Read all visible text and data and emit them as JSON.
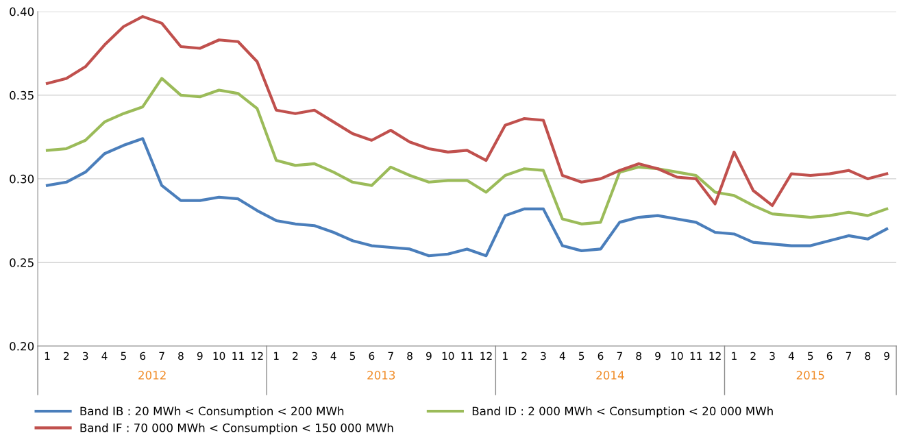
{
  "chart_data": {
    "type": "line",
    "categories": [
      "1",
      "2",
      "3",
      "4",
      "5",
      "6",
      "7",
      "8",
      "9",
      "10",
      "11",
      "12",
      "1",
      "2",
      "3",
      "4",
      "5",
      "6",
      "7",
      "8",
      "9",
      "10",
      "11",
      "12",
      "1",
      "2",
      "3",
      "4",
      "5",
      "6",
      "7",
      "8",
      "9",
      "10",
      "11",
      "12",
      "1",
      "2",
      "3",
      "4",
      "5",
      "6",
      "7",
      "8",
      "9"
    ],
    "annotations": [
      "2012",
      "2013",
      "2014",
      "2015"
    ],
    "series": [
      {
        "name": "Band IB : 20 MWh < Consumption < 200 MWh",
        "color": "#4a7ebb",
        "values": [
          0.296,
          0.298,
          0.304,
          0.315,
          0.32,
          0.324,
          0.296,
          0.287,
          0.287,
          0.289,
          0.288,
          0.281,
          0.275,
          0.273,
          0.272,
          0.268,
          0.263,
          0.26,
          0.259,
          0.258,
          0.254,
          0.255,
          0.258,
          0.254,
          0.278,
          0.282,
          0.282,
          0.26,
          0.257,
          0.258,
          0.274,
          0.277,
          0.278,
          0.276,
          0.274,
          0.268,
          0.267,
          0.262,
          0.261,
          0.26,
          0.26,
          0.263,
          0.266,
          0.264,
          0.27
        ]
      },
      {
        "name": "Band ID : 2 000 MWh < Consumption < 20 000 MWh",
        "color": "#9bbb59",
        "values": [
          0.317,
          0.318,
          0.323,
          0.334,
          0.339,
          0.343,
          0.36,
          0.35,
          0.349,
          0.353,
          0.351,
          0.342,
          0.311,
          0.308,
          0.309,
          0.304,
          0.298,
          0.296,
          0.307,
          0.302,
          0.298,
          0.299,
          0.299,
          0.292,
          0.302,
          0.306,
          0.305,
          0.276,
          0.273,
          0.274,
          0.304,
          0.307,
          0.306,
          0.304,
          0.302,
          0.292,
          0.29,
          0.284,
          0.279,
          0.278,
          0.277,
          0.278,
          0.28,
          0.278,
          0.282
        ]
      },
      {
        "name": "Band IF : 70 000 MWh < Consumption < 150 000 MWh",
        "color": "#c0504d",
        "values": [
          0.357,
          0.36,
          0.367,
          0.38,
          0.391,
          0.397,
          0.393,
          0.379,
          0.378,
          0.383,
          0.382,
          0.37,
          0.341,
          0.339,
          0.341,
          0.334,
          0.327,
          0.323,
          0.329,
          0.322,
          0.318,
          0.316,
          0.317,
          0.311,
          0.332,
          0.336,
          0.335,
          0.302,
          0.298,
          0.3,
          0.305,
          0.309,
          0.306,
          0.301,
          0.3,
          0.285,
          0.316,
          0.293,
          0.284,
          0.303,
          0.302,
          0.303,
          0.305,
          0.3,
          0.303
        ]
      }
    ],
    "ylim": [
      0.2,
      0.4
    ],
    "yticks": [
      {
        "value": 0.2,
        "label": "0.20"
      },
      {
        "value": 0.25,
        "label": "0.25"
      },
      {
        "value": 0.3,
        "label": "0.30"
      },
      {
        "value": 0.35,
        "label": "0.35"
      },
      {
        "value": 0.4,
        "label": "0.40"
      }
    ],
    "grid": "y",
    "legend": "bottom",
    "marker": "none",
    "line_style": "solid"
  }
}
